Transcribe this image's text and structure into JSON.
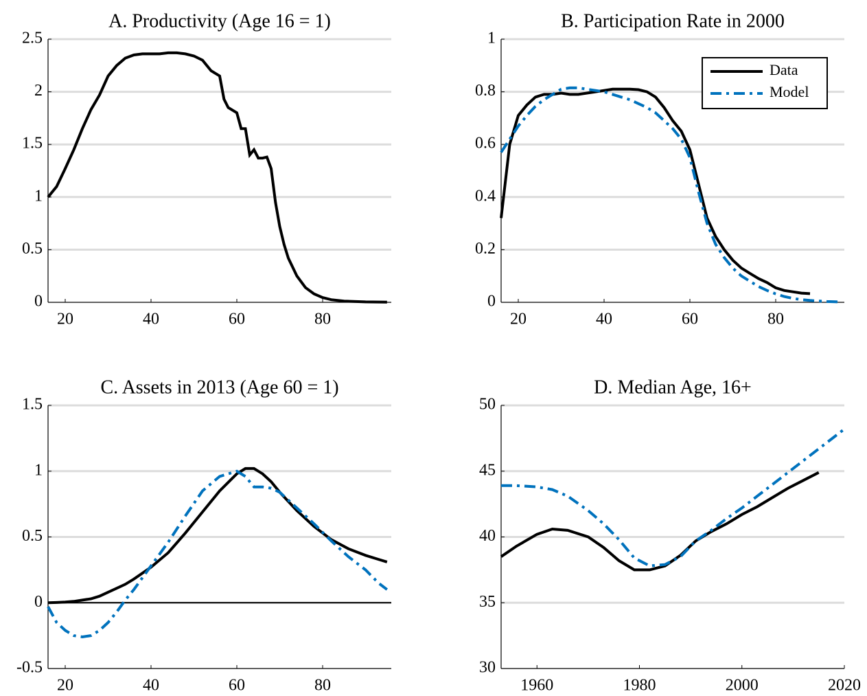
{
  "chart_data": [
    {
      "type": "line",
      "title": "A. Productivity (Age 16 = 1)",
      "x": [
        16,
        18,
        20,
        22,
        24,
        26,
        28,
        30,
        32,
        34,
        36,
        38,
        40,
        42,
        44,
        46,
        48,
        50,
        52,
        54,
        56,
        57,
        58,
        60,
        61,
        62,
        63,
        64,
        65,
        66,
        67,
        68,
        69,
        70,
        71,
        72,
        74,
        76,
        78,
        80,
        82,
        85,
        90,
        95
      ],
      "values": [
        1.0,
        1.1,
        1.27,
        1.45,
        1.65,
        1.83,
        1.97,
        2.15,
        2.25,
        2.32,
        2.35,
        2.36,
        2.36,
        2.36,
        2.37,
        2.37,
        2.36,
        2.34,
        2.3,
        2.2,
        2.15,
        1.93,
        1.85,
        1.8,
        1.65,
        1.65,
        1.4,
        1.45,
        1.37,
        1.37,
        1.38,
        1.27,
        0.95,
        0.72,
        0.55,
        0.42,
        0.25,
        0.14,
        0.08,
        0.045,
        0.025,
        0.012,
        0.004,
        0.001
      ],
      "color": "#000000",
      "xlim": [
        16,
        96
      ],
      "xticks": [
        20,
        40,
        60,
        80
      ],
      "ylim": [
        0,
        2.5
      ],
      "yticks": [
        0,
        0.5,
        1,
        1.5,
        2,
        2.5
      ],
      "grid": true
    },
    {
      "type": "line",
      "title": "B. Participation Rate in 2000",
      "x": [
        16,
        18,
        20,
        22,
        24,
        26,
        28,
        30,
        32,
        34,
        36,
        38,
        40,
        42,
        44,
        46,
        48,
        50,
        52,
        54,
        56,
        58,
        60,
        62,
        64,
        66,
        68,
        70,
        72,
        74,
        76,
        78,
        80,
        82,
        84,
        86,
        88,
        90,
        92,
        94,
        95
      ],
      "series": [
        {
          "name": "Data",
          "color": "#000000",
          "style": "solid",
          "values": [
            0.32,
            0.6,
            0.71,
            0.75,
            0.78,
            0.79,
            0.79,
            0.795,
            0.79,
            0.79,
            0.795,
            0.8,
            0.805,
            0.81,
            0.81,
            0.81,
            0.808,
            0.8,
            0.78,
            0.74,
            0.69,
            0.65,
            0.58,
            0.45,
            0.32,
            0.25,
            0.2,
            0.16,
            0.13,
            0.11,
            0.09,
            0.075,
            0.055,
            0.045,
            0.04,
            0.035,
            0.033,
            null,
            0.03,
            null,
            null
          ]
        },
        {
          "name": "Model",
          "color": "#0072bd",
          "style": "dashdot",
          "values": [
            0.57,
            0.62,
            0.67,
            0.71,
            0.745,
            0.77,
            0.79,
            0.81,
            0.815,
            0.815,
            0.81,
            0.805,
            0.8,
            0.79,
            0.78,
            0.77,
            0.755,
            0.74,
            0.72,
            0.69,
            0.66,
            0.62,
            0.55,
            0.42,
            0.3,
            0.22,
            0.17,
            0.13,
            0.1,
            0.08,
            0.06,
            0.045,
            0.032,
            0.022,
            0.015,
            0.01,
            0.007,
            0.005,
            0.003,
            0.002,
            0.001
          ]
        }
      ],
      "xlim": [
        16,
        96
      ],
      "xticks": [
        20,
        40,
        60,
        80
      ],
      "ylim": [
        0,
        1
      ],
      "yticks": [
        0,
        0.2,
        0.4,
        0.6,
        0.8,
        1
      ],
      "grid": true,
      "legend": "upper right"
    },
    {
      "type": "line",
      "title": "C. Assets in 2013 (Age 60 = 1)",
      "x": [
        16,
        18,
        20,
        22,
        24,
        26,
        28,
        30,
        32,
        34,
        36,
        40,
        44,
        48,
        52,
        56,
        60,
        62,
        64,
        66,
        68,
        70,
        74,
        78,
        82,
        86,
        90,
        93,
        95
      ],
      "series": [
        {
          "color": "#000000",
          "style": "solid",
          "values": [
            0,
            0.002,
            0.005,
            0.01,
            0.02,
            0.03,
            0.05,
            0.08,
            0.11,
            0.14,
            0.18,
            0.27,
            0.38,
            0.53,
            0.69,
            0.85,
            0.98,
            1.02,
            1.02,
            0.98,
            0.92,
            0.84,
            0.7,
            0.58,
            0.48,
            0.41,
            0.36,
            0.33,
            0.31
          ]
        },
        {
          "color": "#0072bd",
          "style": "dashdot",
          "values": [
            -0.03,
            -0.15,
            -0.21,
            -0.25,
            -0.26,
            -0.25,
            -0.21,
            -0.15,
            -0.07,
            0.02,
            0.1,
            0.28,
            0.46,
            0.66,
            0.85,
            0.96,
            1.0,
            0.96,
            0.88,
            0.88,
            0.87,
            0.84,
            0.72,
            0.6,
            0.47,
            0.35,
            0.25,
            0.15,
            0.1
          ]
        }
      ],
      "xlim": [
        16,
        96
      ],
      "xticks": [
        20,
        40,
        60,
        80
      ],
      "ylim": [
        -0.5,
        1.5
      ],
      "yticks": [
        -0.5,
        0,
        0.5,
        1,
        1.5
      ],
      "grid": true,
      "zero_line": true
    },
    {
      "type": "line",
      "title": "D. Median Age, 16+",
      "x": [
        1953,
        1956,
        1960,
        1963,
        1966,
        1970,
        1973,
        1976,
        1979,
        1982,
        1985,
        1988,
        1991,
        1994,
        1997,
        2000,
        2003,
        2006,
        2009,
        2012,
        2015,
        2018,
        2020
      ],
      "series": [
        {
          "color": "#000000",
          "style": "solid",
          "values": [
            38.5,
            39.3,
            40.2,
            40.6,
            40.5,
            40.0,
            39.2,
            38.2,
            37.5,
            37.5,
            37.8,
            38.6,
            39.7,
            40.4,
            41.0,
            41.7,
            42.3,
            43.0,
            43.7,
            44.3,
            44.9,
            null,
            null
          ]
        },
        {
          "color": "#0072bd",
          "style": "dashdot",
          "values": [
            43.9,
            43.9,
            43.8,
            43.6,
            43.1,
            42.0,
            41.0,
            39.8,
            38.4,
            37.8,
            37.9,
            38.5,
            39.7,
            40.5,
            41.4,
            42.2,
            43.1,
            44.0,
            44.9,
            45.8,
            46.7,
            47.6,
            48.2
          ]
        }
      ],
      "xlim": [
        1953,
        2020
      ],
      "xticks": [
        1960,
        1980,
        2000,
        2020
      ],
      "ylim": [
        30,
        50
      ],
      "yticks": [
        30,
        35,
        40,
        45,
        50
      ],
      "grid": true
    }
  ]
}
